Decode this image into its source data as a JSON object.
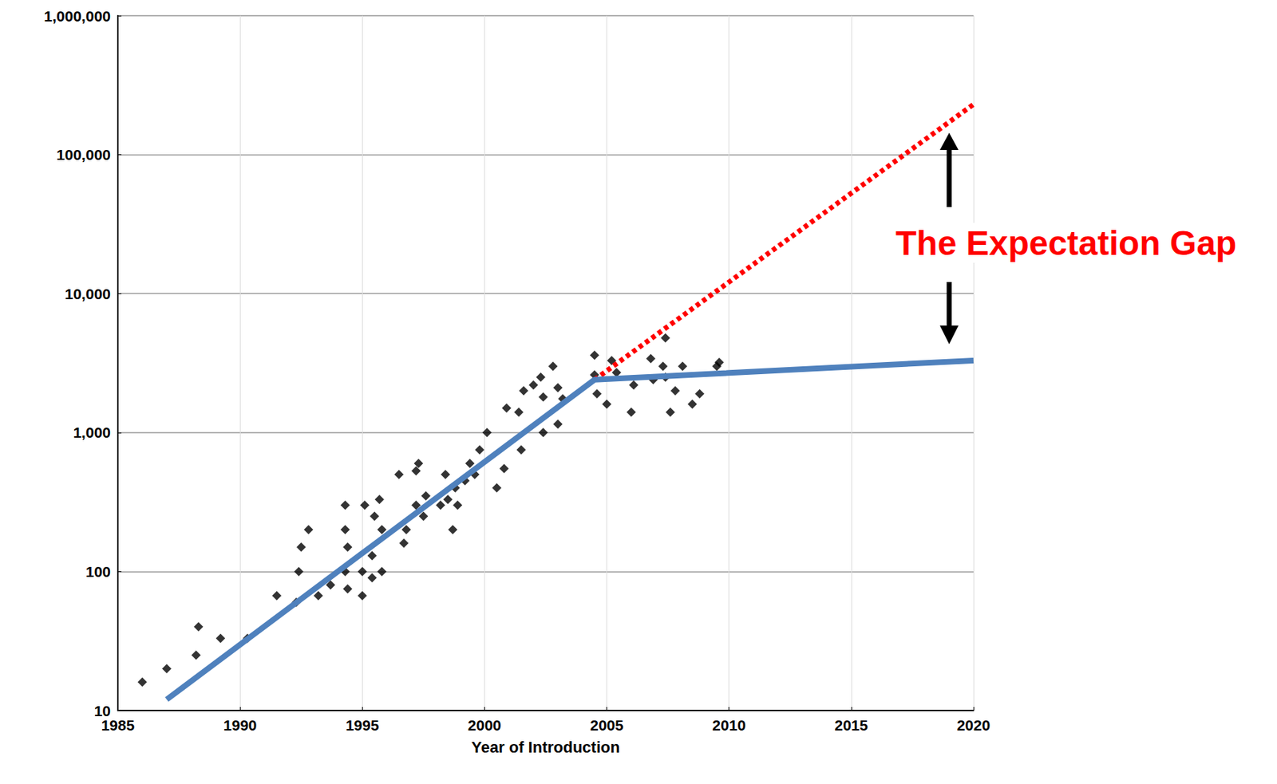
{
  "chart_data": {
    "type": "scatter",
    "xlabel": "Year of Introduction",
    "xlim": [
      1985,
      2020
    ],
    "xticks": [
      1985,
      1990,
      1995,
      2000,
      2005,
      2010,
      2015,
      2020
    ],
    "ylim": [
      10,
      1000000
    ],
    "yticks": [
      {
        "value": 10,
        "label": "10"
      },
      {
        "value": 100,
        "label": "100"
      },
      {
        "value": 1000,
        "label": "1,000"
      },
      {
        "value": 10000,
        "label": "10,000"
      },
      {
        "value": 100000,
        "label": "100,000"
      },
      {
        "value": 1000000,
        "label": "1,000,000"
      }
    ],
    "log": "y",
    "grid": true,
    "annotations": [
      {
        "text": "The Expectation Gap",
        "color": "#ff0000"
      }
    ],
    "series": [
      {
        "type": "scatter",
        "marker": "diamond",
        "color": "#000000",
        "x": [
          1986,
          1987,
          1988.3,
          1988.2,
          1989.2,
          1990.3,
          1991.5,
          1992.3,
          1992.4,
          1992.5,
          1992.8,
          1993.2,
          1993.7,
          1994.3,
          1994.3,
          1994.4,
          1994.3,
          1994.4,
          1995,
          1995.1,
          1995,
          1995.4,
          1995.4,
          1995.5,
          1995.7,
          1995.8,
          1995.8,
          1996.5,
          1996.7,
          1996.8,
          1997.2,
          1997.3,
          1997.2,
          1997.5,
          1997.6,
          1998.2,
          1998.4,
          1998.5,
          1998.7,
          1998.8,
          1998.9,
          1999.2,
          1999.4,
          1999.6,
          1999.8,
          2000.1,
          2000.5,
          2000.8,
          2000.9,
          2001.4,
          2001.5,
          2001.6,
          2002,
          2002.3,
          2002.4,
          2002.4,
          2002.8,
          2003,
          2003,
          2003.2,
          2004.5,
          2004.5,
          2004.6,
          2005,
          2005.2,
          2005.4,
          2006,
          2006.1,
          2006.8,
          2006.9,
          2007.3,
          2007.4,
          2007.4,
          2007.6,
          2007.8,
          2008.1,
          2008.5,
          2008.8,
          2009.6,
          2009.5
        ],
        "values": [
          16,
          20,
          40,
          25,
          33,
          33,
          67,
          60,
          100,
          150,
          200,
          67,
          80,
          300,
          200,
          150,
          100,
          75,
          100,
          300,
          67,
          90,
          130,
          250,
          330,
          200,
          100,
          500,
          160,
          200,
          530,
          600,
          300,
          250,
          350,
          300,
          500,
          330,
          200,
          400,
          300,
          450,
          600,
          500,
          750,
          1000,
          400,
          550,
          1500,
          1400,
          750,
          2000,
          2200,
          2500,
          1800,
          1000,
          3000,
          1150,
          2100,
          1750,
          3600,
          2600,
          1900,
          1600,
          3300,
          2700,
          1400,
          2200,
          3400,
          2400,
          3000,
          2500,
          4800,
          1400,
          2000,
          3000,
          1600,
          1900,
          3200,
          3000
        ]
      },
      {
        "type": "line",
        "marker": "none",
        "line_style": "solid",
        "color": "#4f81bd",
        "x": [
          1987,
          2004.5,
          2020
        ],
        "values": [
          12,
          2400,
          3300
        ]
      },
      {
        "type": "line",
        "marker": "none",
        "line_style": "dotted",
        "color": "#ff0000",
        "x": [
          2004.5,
          2020
        ],
        "values": [
          2400,
          230000
        ]
      }
    ]
  }
}
